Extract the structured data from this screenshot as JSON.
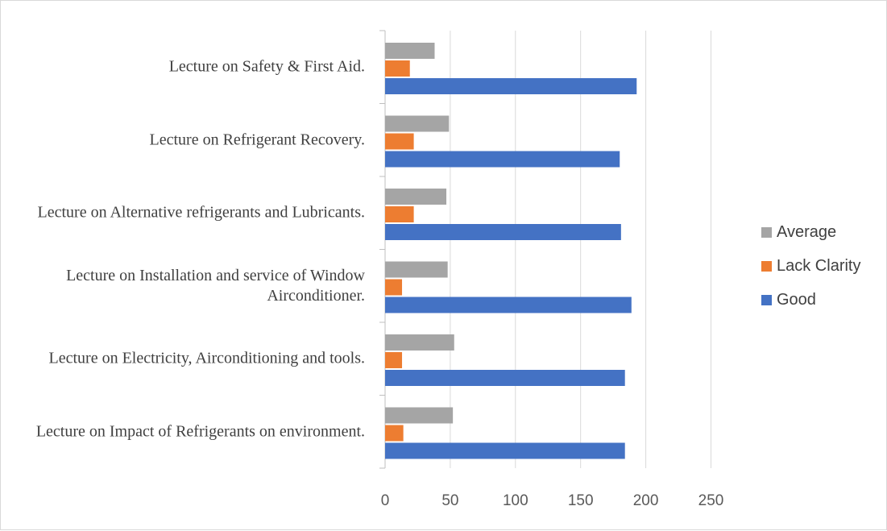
{
  "chart_data": {
    "type": "bar",
    "orientation": "horizontal",
    "categories": [
      "Lecture on Safety & First Aid.",
      "Lecture on Refrigerant Recovery.",
      "Lecture on Alternative refrigerants and Lubricants.",
      "Lecture on Installation and service of Window Airconditioner.",
      "Lecture on Electricity, Airconditioning and tools.",
      "Lecture on Impact of Refrigerants on environment."
    ],
    "series": [
      {
        "name": "Average",
        "color": "#a5a5a5",
        "values": [
          38,
          49,
          47,
          48,
          53,
          52
        ]
      },
      {
        "name": "Lack Clarity",
        "color": "#ed7d31",
        "values": [
          19,
          22,
          22,
          13,
          13,
          14
        ]
      },
      {
        "name": "Good",
        "color": "#4472c4",
        "values": [
          193,
          180,
          181,
          189,
          184,
          184
        ]
      }
    ],
    "x_ticks": [
      "0",
      "50",
      "100",
      "150",
      "200",
      "250"
    ],
    "xlim": [
      0,
      250
    ],
    "title": "",
    "xlabel": "",
    "ylabel": "",
    "grid": "vertical",
    "legend": {
      "position": "right",
      "order": [
        "Average",
        "Lack Clarity",
        "Good"
      ]
    }
  }
}
